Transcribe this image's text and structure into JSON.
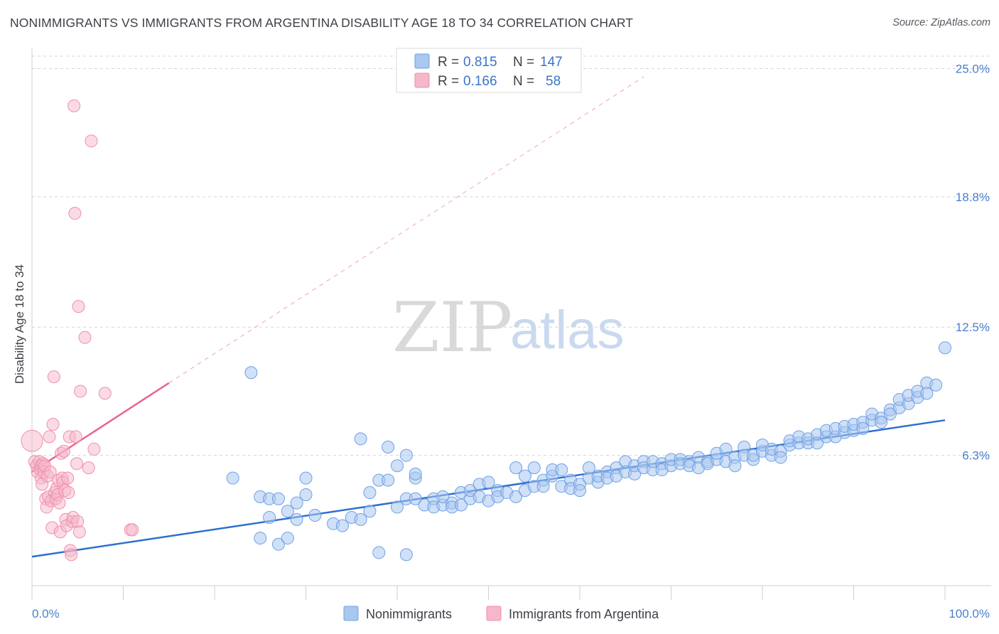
{
  "title": "NONIMMIGRANTS VS IMMIGRANTS FROM ARGENTINA DISABILITY AGE 18 TO 34 CORRELATION CHART",
  "source": "Source: ZipAtlas.com",
  "watermark": {
    "zip": "ZIP",
    "atlas": "atlas"
  },
  "legend_top": {
    "rows": [
      {
        "r_label": "R =",
        "r_value": "0.815",
        "n_label": "N =",
        "n_value": "147",
        "color": "#a9c7ef"
      },
      {
        "r_label": "R =",
        "r_value": "0.166",
        "n_label": "N =",
        "n_value": "58",
        "color": "#f5b7c9"
      }
    ]
  },
  "legend_bottom": {
    "series1": "Nonimmigrants",
    "series2": "Immigrants from Argentina"
  },
  "colors": {
    "blue": "#6fa0e6",
    "blue_fill": "#a9c7ef",
    "blue_line": "#2f6fcf",
    "pink": "#ee8fab",
    "pink_fill": "#f5b7c9",
    "pink_line": "#e8658e",
    "grid": "#d5d5d5",
    "tick_text": "#4a7fcb"
  },
  "chart_data": {
    "type": "scatter",
    "title": "NONIMMIGRANTS VS IMMIGRANTS FROM ARGENTINA DISABILITY AGE 18 TO 34 CORRELATION CHART",
    "xlabel": "",
    "ylabel": "Disability Age 18 to 34",
    "x_tick_labels": [
      "0.0%",
      "100.0%"
    ],
    "y_tick_labels": [
      "6.3%",
      "12.5%",
      "18.8%",
      "25.0%"
    ],
    "y_ticks": [
      6.3,
      12.5,
      18.8,
      25.0
    ],
    "xlim": [
      0,
      100
    ],
    "ylim": [
      0,
      25.6
    ],
    "grid": "dashed horizontal",
    "legend_placement": "top-center",
    "series": [
      {
        "name": "Nonimmigrants",
        "r": 0.815,
        "n": 147,
        "trend": {
          "x": [
            0,
            100
          ],
          "y": [
            1.4,
            8.0
          ]
        },
        "points": [
          [
            22,
            5.2
          ],
          [
            24,
            10.3
          ],
          [
            25,
            4.3
          ],
          [
            25,
            2.3
          ],
          [
            26,
            4.2
          ],
          [
            26,
            3.3
          ],
          [
            27,
            4.2
          ],
          [
            27,
            2.0
          ],
          [
            28,
            3.6
          ],
          [
            28,
            2.3
          ],
          [
            29,
            4.0
          ],
          [
            29,
            3.2
          ],
          [
            30,
            5.2
          ],
          [
            30,
            4.4
          ],
          [
            31,
            3.4
          ],
          [
            33,
            3.0
          ],
          [
            34,
            2.9
          ],
          [
            35,
            3.3
          ],
          [
            36,
            3.2
          ],
          [
            37,
            3.6
          ],
          [
            36,
            7.1
          ],
          [
            37,
            4.5
          ],
          [
            38,
            5.1
          ],
          [
            38,
            1.6
          ],
          [
            39,
            5.1
          ],
          [
            39,
            6.7
          ],
          [
            40,
            5.8
          ],
          [
            40,
            3.8
          ],
          [
            41,
            1.5
          ],
          [
            41,
            4.2
          ],
          [
            41,
            6.3
          ],
          [
            42,
            5.2
          ],
          [
            42,
            5.4
          ],
          [
            42,
            4.2
          ],
          [
            43,
            3.9
          ],
          [
            44,
            4.2
          ],
          [
            44,
            3.8
          ],
          [
            45,
            3.9
          ],
          [
            45,
            4.3
          ],
          [
            46,
            4.0
          ],
          [
            46,
            3.8
          ],
          [
            47,
            4.5
          ],
          [
            47,
            3.9
          ],
          [
            48,
            4.2
          ],
          [
            48,
            4.6
          ],
          [
            49,
            4.9
          ],
          [
            49,
            4.3
          ],
          [
            50,
            5.0
          ],
          [
            50,
            4.1
          ],
          [
            51,
            4.6
          ],
          [
            51,
            4.3
          ],
          [
            52,
            4.5
          ],
          [
            53,
            5.7
          ],
          [
            53,
            4.3
          ],
          [
            54,
            5.3
          ],
          [
            54,
            4.6
          ],
          [
            55,
            5.7
          ],
          [
            55,
            4.8
          ],
          [
            56,
            5.1
          ],
          [
            56,
            4.8
          ],
          [
            57,
            5.3
          ],
          [
            57,
            5.6
          ],
          [
            58,
            4.8
          ],
          [
            58,
            5.6
          ],
          [
            59,
            5.1
          ],
          [
            59,
            4.7
          ],
          [
            60,
            4.9
          ],
          [
            60,
            4.6
          ],
          [
            61,
            5.2
          ],
          [
            61,
            5.7
          ],
          [
            62,
            5.0
          ],
          [
            62,
            5.3
          ],
          [
            63,
            5.5
          ],
          [
            63,
            5.2
          ],
          [
            64,
            5.7
          ],
          [
            64,
            5.3
          ],
          [
            65,
            6.0
          ],
          [
            65,
            5.5
          ],
          [
            66,
            5.4
          ],
          [
            66,
            5.8
          ],
          [
            67,
            6.0
          ],
          [
            67,
            5.7
          ],
          [
            68,
            5.6
          ],
          [
            68,
            6.0
          ],
          [
            69,
            5.9
          ],
          [
            69,
            5.6
          ],
          [
            70,
            5.8
          ],
          [
            70,
            6.1
          ],
          [
            71,
            6.1
          ],
          [
            71,
            5.9
          ],
          [
            72,
            6.0
          ],
          [
            72,
            5.8
          ],
          [
            73,
            6.2
          ],
          [
            73,
            5.7
          ],
          [
            74,
            6.0
          ],
          [
            74,
            5.9
          ],
          [
            75,
            6.1
          ],
          [
            75,
            6.4
          ],
          [
            76,
            6.0
          ],
          [
            76,
            6.6
          ],
          [
            77,
            6.2
          ],
          [
            77,
            5.8
          ],
          [
            78,
            6.7
          ],
          [
            78,
            6.3
          ],
          [
            79,
            6.1
          ],
          [
            79,
            6.3
          ],
          [
            80,
            6.5
          ],
          [
            80,
            6.8
          ],
          [
            81,
            6.3
          ],
          [
            81,
            6.6
          ],
          [
            82,
            6.5
          ],
          [
            82,
            6.2
          ],
          [
            83,
            6.8
          ],
          [
            83,
            7.0
          ],
          [
            84,
            6.9
          ],
          [
            84,
            7.2
          ],
          [
            85,
            6.9
          ],
          [
            85,
            7.1
          ],
          [
            86,
            7.3
          ],
          [
            86,
            6.9
          ],
          [
            87,
            7.2
          ],
          [
            87,
            7.5
          ],
          [
            88,
            7.2
          ],
          [
            88,
            7.6
          ],
          [
            89,
            7.4
          ],
          [
            89,
            7.7
          ],
          [
            90,
            7.5
          ],
          [
            90,
            7.8
          ],
          [
            91,
            7.9
          ],
          [
            91,
            7.6
          ],
          [
            92,
            8.0
          ],
          [
            92,
            8.3
          ],
          [
            93,
            8.1
          ],
          [
            93,
            7.9
          ],
          [
            94,
            8.5
          ],
          [
            94,
            8.3
          ],
          [
            95,
            8.6
          ],
          [
            95,
            9.0
          ],
          [
            96,
            8.8
          ],
          [
            96,
            9.2
          ],
          [
            97,
            9.1
          ],
          [
            97,
            9.4
          ],
          [
            98,
            9.8
          ],
          [
            98,
            9.3
          ],
          [
            99,
            9.7
          ],
          [
            100,
            11.5
          ]
        ]
      },
      {
        "name": "Immigrants from Argentina",
        "r": 0.166,
        "n": 58,
        "trend": {
          "x": [
            0,
            15
          ],
          "y": [
            5.5,
            9.8
          ]
        },
        "trend_extension": {
          "x": [
            15,
            67
          ],
          "y": [
            9.8,
            24.6
          ]
        },
        "points": [
          [
            0,
            7.0
          ],
          [
            0.3,
            6.0
          ],
          [
            0.5,
            5.8
          ],
          [
            0.6,
            5.5
          ],
          [
            0.8,
            6.0
          ],
          [
            0.9,
            5.6
          ],
          [
            1,
            5.8
          ],
          [
            1,
            5.2
          ],
          [
            1.1,
            4.9
          ],
          [
            1.2,
            5.9
          ],
          [
            1.3,
            5.5
          ],
          [
            1.4,
            5.8
          ],
          [
            1.5,
            4.2
          ],
          [
            1.6,
            3.8
          ],
          [
            1.7,
            5.3
          ],
          [
            1.8,
            4.3
          ],
          [
            1.9,
            7.2
          ],
          [
            2,
            5.5
          ],
          [
            2.1,
            4.1
          ],
          [
            2.2,
            2.8
          ],
          [
            2.3,
            7.8
          ],
          [
            2.4,
            10.1
          ],
          [
            2.5,
            4.5
          ],
          [
            2.6,
            4.2
          ],
          [
            2.7,
            4.7
          ],
          [
            2.8,
            4.4
          ],
          [
            2.9,
            5.1
          ],
          [
            3,
            4.0
          ],
          [
            3.1,
            2.6
          ],
          [
            3.2,
            6.4
          ],
          [
            3.3,
            5.2
          ],
          [
            3.4,
            5.0
          ],
          [
            3.5,
            6.5
          ],
          [
            3.6,
            4.6
          ],
          [
            3.7,
            3.2
          ],
          [
            3.8,
            2.9
          ],
          [
            3.9,
            5.2
          ],
          [
            4,
            4.5
          ],
          [
            4.1,
            7.2
          ],
          [
            4.2,
            1.7
          ],
          [
            4.3,
            1.5
          ],
          [
            4.4,
            3.1
          ],
          [
            4.5,
            3.3
          ],
          [
            4.6,
            23.2
          ],
          [
            4.7,
            18.0
          ],
          [
            4.8,
            7.2
          ],
          [
            4.9,
            5.9
          ],
          [
            5,
            3.1
          ],
          [
            5.1,
            13.5
          ],
          [
            5.2,
            2.6
          ],
          [
            5.3,
            9.4
          ],
          [
            5.8,
            12.0
          ],
          [
            6.2,
            5.7
          ],
          [
            6.5,
            21.5
          ],
          [
            6.8,
            6.6
          ],
          [
            8,
            9.3
          ],
          [
            10.8,
            2.7
          ],
          [
            11,
            2.7
          ]
        ]
      }
    ]
  }
}
